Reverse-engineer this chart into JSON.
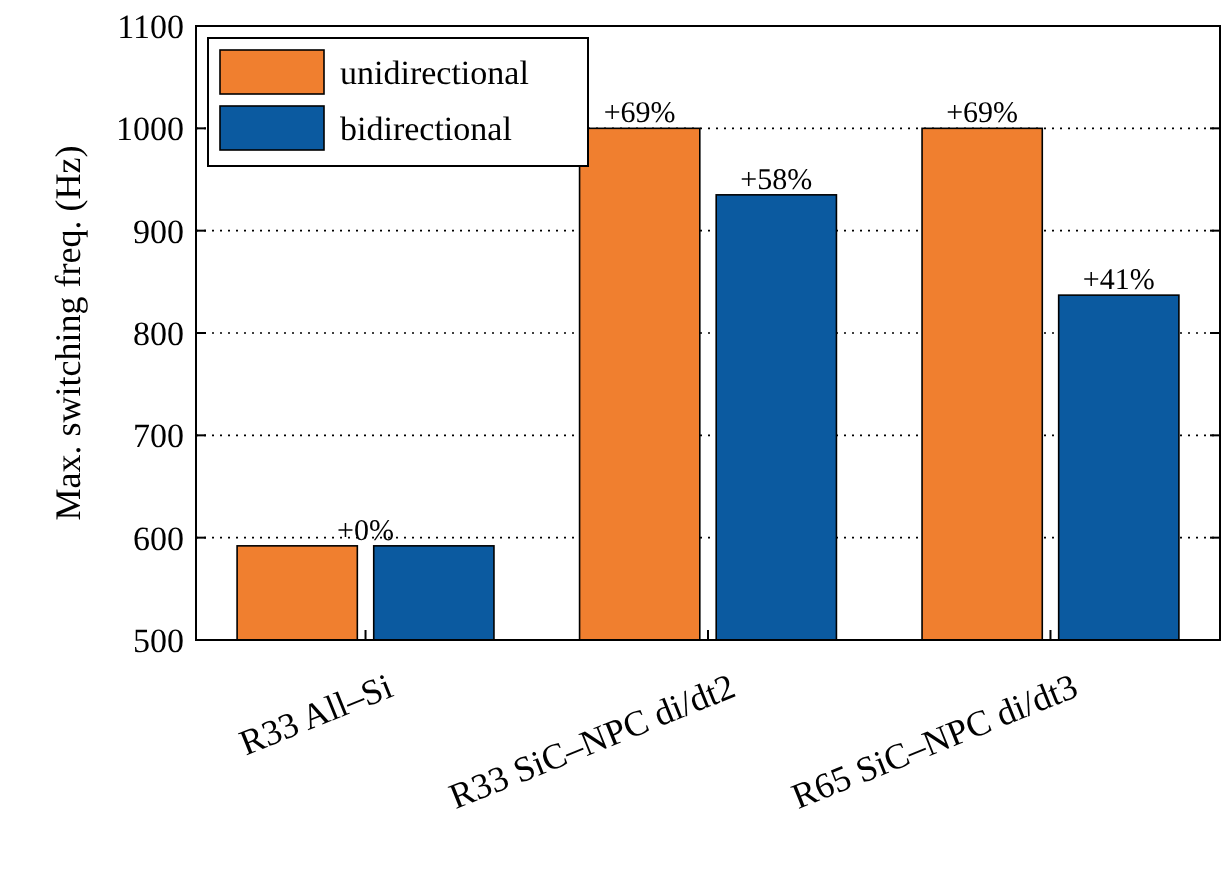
{
  "chart_data": {
    "type": "bar",
    "ylabel": "Max. switching freq. (Hz)",
    "categories": [
      "R33 All–Si",
      "R33 SiC–NPC di/dt2",
      "R65 SiC–NPC di/dt3"
    ],
    "series": [
      {
        "name": "unidirectional",
        "color": "#f07f2f",
        "values": [
          592,
          1000,
          1000
        ]
      },
      {
        "name": "bidirectional",
        "color": "#0b5aa0",
        "values": [
          592,
          935,
          837
        ]
      }
    ],
    "annotations": [
      {
        "text": "+0%",
        "x": "R33 All–Si",
        "y": 592
      },
      {
        "text": "+69%",
        "x": "R33 SiC–NPC di/dt2",
        "y": 1000
      },
      {
        "text": "+58%",
        "x": "R33 SiC–NPC di/dt2",
        "y": 935
      },
      {
        "text": "+69%",
        "x": "R65 SiC–NPC di/dt3",
        "y": 1000
      },
      {
        "text": "+41%",
        "x": "R65 SiC–NPC di/dt3",
        "y": 837
      }
    ],
    "ylim": [
      500,
      1100
    ],
    "yticks": [
      500,
      600,
      700,
      800,
      900,
      1000,
      1100
    ],
    "grid": "y",
    "legend": "top left"
  }
}
